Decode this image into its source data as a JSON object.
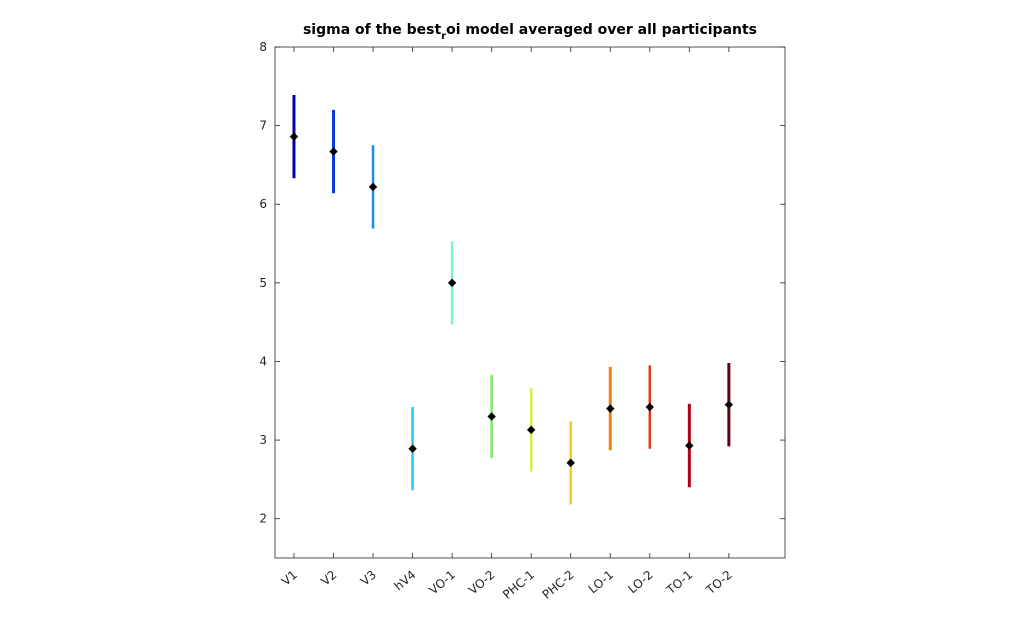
{
  "chart_data": {
    "type": "errorbar",
    "title": "sigma of the best",
    "title_subscript": "r",
    "title_suffix": "oi model averaged over all participants",
    "xlabel": "",
    "ylabel": "",
    "ylim": [
      1.5,
      8
    ],
    "yticks": [
      2,
      3,
      4,
      5,
      6,
      7,
      8
    ],
    "grid": false,
    "categories": [
      "V1",
      "V2",
      "V3",
      "hV4",
      "VO-1",
      "VO-2",
      "PHC-1",
      "PHC-2",
      "LO-1",
      "LO-2",
      "TO-1",
      "TO-2"
    ],
    "values": [
      6.86,
      6.67,
      6.22,
      2.89,
      5.0,
      3.3,
      3.13,
      2.71,
      3.4,
      3.42,
      2.93,
      3.45
    ],
    "lower": [
      6.33,
      6.14,
      5.69,
      2.36,
      4.47,
      2.77,
      2.6,
      2.18,
      2.87,
      2.89,
      2.4,
      2.92
    ],
    "upper": [
      7.39,
      7.2,
      6.75,
      3.42,
      5.53,
      3.83,
      3.66,
      3.24,
      3.93,
      3.95,
      3.46,
      3.98
    ],
    "colors": [
      "#0000a8",
      "#0a3cdc",
      "#1e8cf0",
      "#28c8ec",
      "#78f0d8",
      "#7ce864",
      "#d4f03c",
      "#f0d010",
      "#f08010",
      "#e03c14",
      "#b00010",
      "#600010"
    ],
    "marker_color": "#000000"
  }
}
